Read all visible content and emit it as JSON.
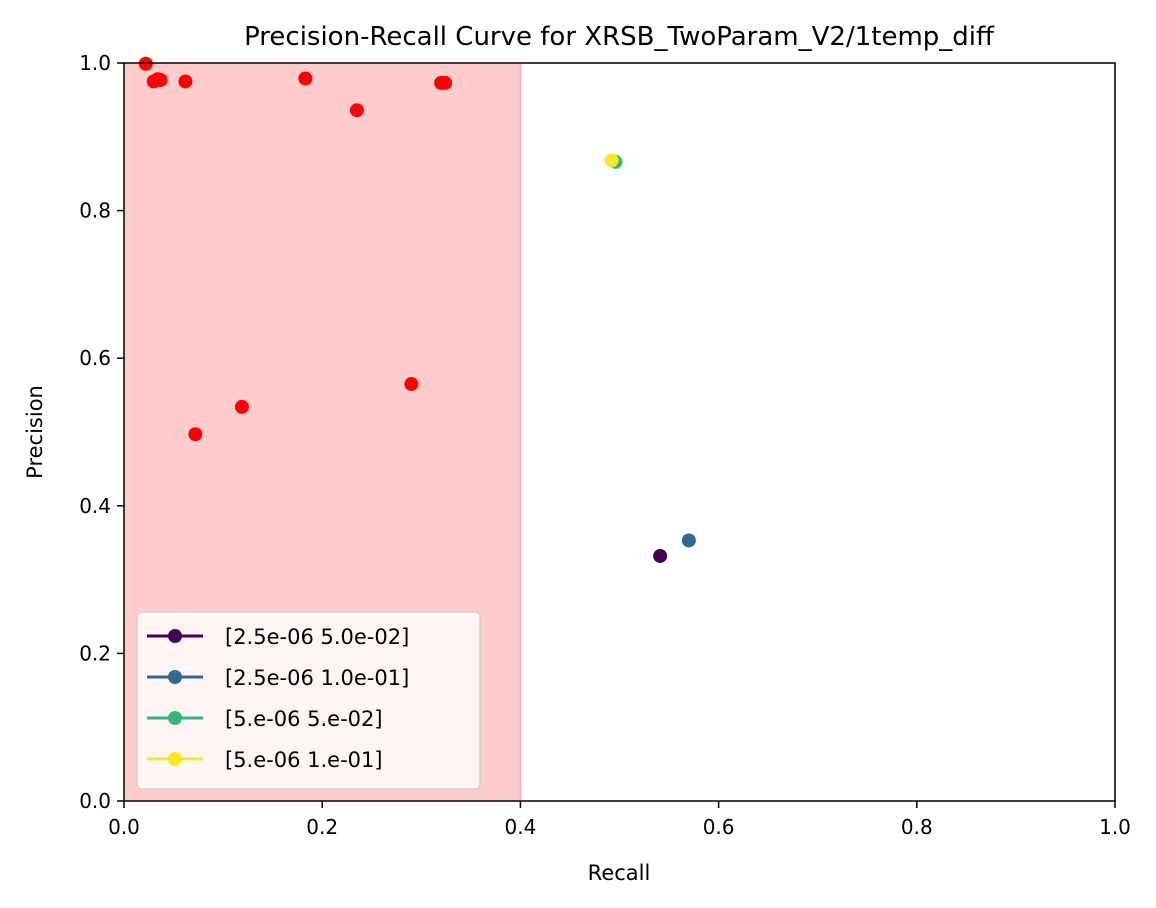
{
  "chart_data": {
    "type": "scatter",
    "title": "Precision-Recall Curve for XRSB_TwoParam_V2/1temp_diff",
    "xlabel": "Recall",
    "ylabel": "Precision",
    "xlim": [
      0.0,
      1.0
    ],
    "ylim": [
      0.0,
      1.0
    ],
    "x_ticks": [
      "0.0",
      "0.2",
      "0.4",
      "0.6",
      "0.8",
      "1.0"
    ],
    "y_ticks": [
      "0.0",
      "0.2",
      "0.4",
      "0.6",
      "0.8",
      "1.0"
    ],
    "grid": false,
    "legend_location": "lower-left",
    "shaded_region": {
      "x_range": [
        0.0,
        0.4
      ],
      "color": "#ffcccc"
    },
    "series": [
      {
        "name": "[2.5e-06 5.0e-02]",
        "color": "#440154",
        "points": [
          [
            0.541,
            0.332
          ]
        ]
      },
      {
        "name": "[2.5e-06 1.0e-01]",
        "color": "#31688e",
        "points": [
          [
            0.57,
            0.353
          ]
        ]
      },
      {
        "name": "[5.e-06 5.e-02]",
        "color": "#35b779",
        "points": [
          [
            0.496,
            0.866
          ]
        ]
      },
      {
        "name": "[5.e-06 1.e-01]",
        "color": "#fde725",
        "points": [
          [
            0.492,
            0.868
          ]
        ]
      }
    ],
    "highlight_points": {
      "color": "#ff0000",
      "points": [
        [
          0.022,
          0.999
        ],
        [
          0.03,
          0.975
        ],
        [
          0.034,
          0.978
        ],
        [
          0.037,
          0.977
        ],
        [
          0.062,
          0.975
        ],
        [
          0.183,
          0.979
        ],
        [
          0.235,
          0.936
        ],
        [
          0.32,
          0.973
        ],
        [
          0.324,
          0.973
        ],
        [
          0.072,
          0.497
        ],
        [
          0.119,
          0.534
        ],
        [
          0.29,
          0.565
        ]
      ]
    },
    "faded_points": {
      "color": "#ffd0d0",
      "points": [
        [
          0.108,
          0.179
        ],
        [
          0.165,
          0.163
        ],
        [
          0.25,
          0.087
        ],
        [
          0.278,
          0.188
        ],
        [
          0.291,
          0.1
        ]
      ]
    }
  }
}
